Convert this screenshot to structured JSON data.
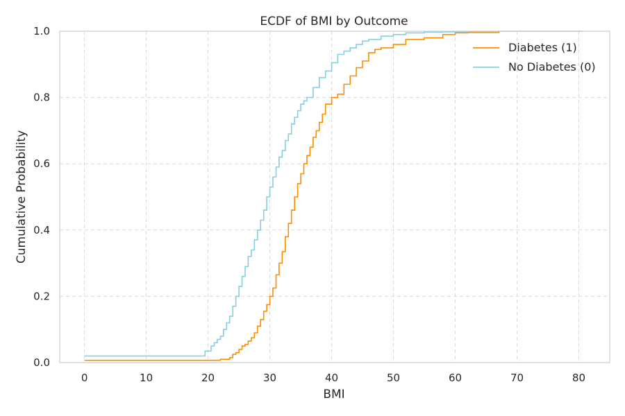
{
  "chart_data": {
    "type": "line",
    "title": "ECDF of BMI by Outcome",
    "xlabel": "BMI",
    "ylabel": "Cumulative Probability",
    "xlim": [
      -4,
      85
    ],
    "ylim": [
      0,
      1.0
    ],
    "xticks": [
      0,
      10,
      20,
      30,
      40,
      50,
      60,
      70,
      80
    ],
    "yticks": [
      0.0,
      0.2,
      0.4,
      0.6,
      0.8,
      1.0
    ],
    "xtick_labels": [
      "0",
      "10",
      "20",
      "30",
      "40",
      "50",
      "60",
      "70",
      "80"
    ],
    "ytick_labels": [
      "0.0",
      "0.2",
      "0.4",
      "0.6",
      "0.8",
      "1.0"
    ],
    "grid": true,
    "legend_position": "top-right",
    "series": [
      {
        "name": "Diabetes (1)",
        "color": "#ff8c00",
        "x": [
          0,
          19.8,
          22,
          23.5,
          24,
          24.5,
          25,
          25.5,
          26,
          26.5,
          27,
          27.5,
          28,
          28.5,
          29,
          29.5,
          30,
          30.5,
          31,
          31.5,
          32,
          32.5,
          33,
          33.5,
          34,
          34.5,
          35,
          35.5,
          36,
          36.5,
          37,
          37.5,
          38,
          38.5,
          39,
          40,
          41,
          42,
          43,
          44,
          45,
          46,
          47,
          48,
          50,
          52,
          55,
          58,
          60,
          62,
          67.1
        ],
        "y": [
          0.007,
          0.007,
          0.01,
          0.015,
          0.025,
          0.03,
          0.04,
          0.05,
          0.055,
          0.065,
          0.075,
          0.09,
          0.11,
          0.13,
          0.155,
          0.175,
          0.2,
          0.225,
          0.265,
          0.3,
          0.335,
          0.38,
          0.42,
          0.46,
          0.5,
          0.54,
          0.57,
          0.6,
          0.625,
          0.65,
          0.68,
          0.7,
          0.725,
          0.75,
          0.78,
          0.8,
          0.81,
          0.84,
          0.865,
          0.89,
          0.91,
          0.935,
          0.945,
          0.95,
          0.96,
          0.975,
          0.98,
          0.99,
          0.995,
          0.996,
          1.0
        ]
      },
      {
        "name": "No Diabetes (0)",
        "color": "#87cee0",
        "x": [
          0,
          18,
          19.5,
          20.5,
          21,
          21.5,
          22,
          22.5,
          23,
          23.5,
          24,
          24.5,
          25,
          25.5,
          26,
          26.5,
          27,
          27.5,
          28,
          28.5,
          29,
          29.5,
          30,
          30.5,
          31,
          31.5,
          32,
          32.5,
          33,
          33.5,
          34,
          34.5,
          35,
          35.5,
          36,
          37,
          38,
          39,
          40,
          41,
          42,
          43,
          44,
          45,
          46,
          48,
          50,
          52,
          55,
          58,
          62,
          67,
          80.6
        ],
        "y": [
          0.02,
          0.02,
          0.035,
          0.05,
          0.06,
          0.07,
          0.08,
          0.1,
          0.12,
          0.14,
          0.17,
          0.2,
          0.23,
          0.26,
          0.29,
          0.32,
          0.34,
          0.37,
          0.4,
          0.43,
          0.46,
          0.5,
          0.53,
          0.56,
          0.59,
          0.62,
          0.64,
          0.67,
          0.69,
          0.72,
          0.74,
          0.76,
          0.78,
          0.79,
          0.8,
          0.83,
          0.86,
          0.88,
          0.905,
          0.93,
          0.94,
          0.95,
          0.96,
          0.97,
          0.975,
          0.985,
          0.99,
          0.995,
          0.997,
          0.998,
          0.999,
          1.0,
          1.0
        ]
      }
    ]
  }
}
